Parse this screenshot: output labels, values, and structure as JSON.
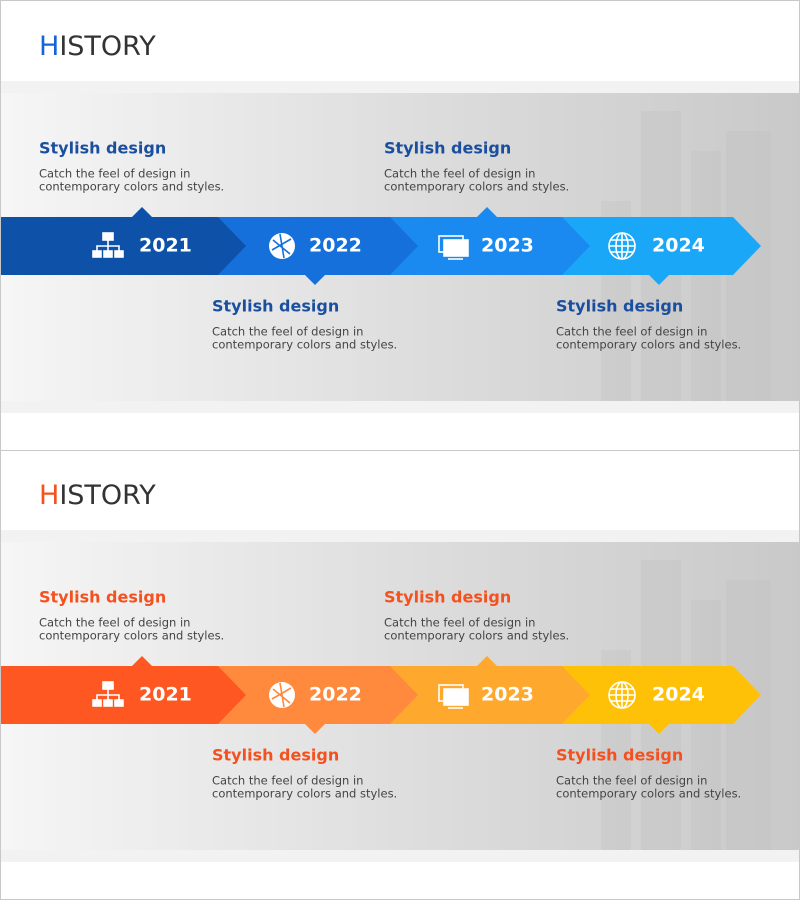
{
  "slides": [
    {
      "title": {
        "initial": "H",
        "rest": "ISTORY"
      },
      "items": [
        {
          "year": "2021",
          "heading": "Stylish design",
          "lines": [
            "Catch the feel of design in",
            "contemporary colors and styles."
          ]
        },
        {
          "year": "2022",
          "heading": "Stylish design",
          "lines": [
            "Catch the feel of design in",
            "contemporary colors and styles."
          ]
        },
        {
          "year": "2023",
          "heading": "Stylish design",
          "lines": [
            "Catch the feel of design in",
            "contemporary colors and styles."
          ]
        },
        {
          "year": "2024",
          "heading": "Stylish design",
          "lines": [
            "Catch the feel of design in",
            "contemporary colors and styles."
          ]
        }
      ]
    },
    {
      "title": {
        "initial": "H",
        "rest": "ISTORY"
      },
      "items": [
        {
          "year": "2021",
          "heading": "Stylish design",
          "lines": [
            "Catch the feel of design in",
            "contemporary colors and styles."
          ]
        },
        {
          "year": "2022",
          "heading": "Stylish design",
          "lines": [
            "Catch the feel of design in",
            "contemporary colors and styles."
          ]
        },
        {
          "year": "2023",
          "heading": "Stylish design",
          "lines": [
            "Catch the feel of design in",
            "contemporary colors and styles."
          ]
        },
        {
          "year": "2024",
          "heading": "Stylish design",
          "lines": [
            "Catch the feel of design in",
            "contemporary colors and styles."
          ]
        }
      ]
    }
  ]
}
